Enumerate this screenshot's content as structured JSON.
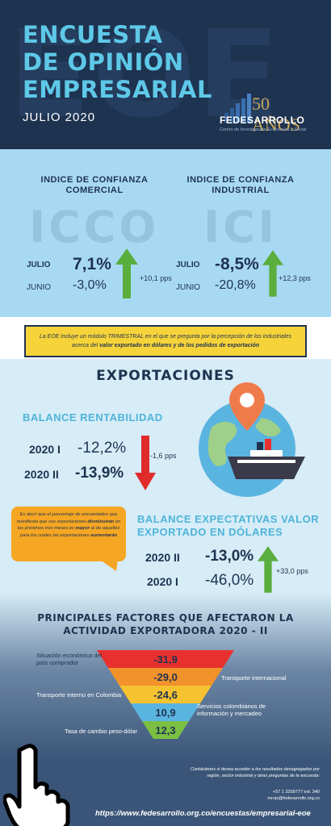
{
  "header": {
    "bg_letters": "EOE",
    "title_line1": "ENCUESTA",
    "title_line2": "DE OPINIÓN",
    "title_line3": "EMPRESARIAL",
    "subtitle": "JULIO 2020",
    "logo": {
      "years": "50 AÑOS",
      "name": "FEDESARROLLO",
      "tagline": "Centro de Investigación Económica y Social"
    }
  },
  "icco": {
    "title_line1": "INDICE DE CONFIANZA",
    "title_line2": "COMERCIAL",
    "acronym": "ICCO",
    "current_label": "JULIO",
    "current_value": "7,1%",
    "previous_label": "JUNIO",
    "previous_value": "-3,0%",
    "change": "+10,1 pps"
  },
  "ici": {
    "title_line1": "INDICE DE CONFIANZA",
    "title_line2": "INDUSTRIAL",
    "acronym": "ICI",
    "current_label": "JULIO",
    "current_value": "-8,5%",
    "previous_label": "JUNIO",
    "previous_value": "-20,8%",
    "change": "+12,3 pps"
  },
  "notice": {
    "text_a": "La EOE incluye un módulo TRIMESTRAL en el que se pregunta por la percepción de los industriales acerca del ",
    "text_b": "valor exportado en dólares y de los pedidos de exportación"
  },
  "exports": {
    "title": "EXPORTACIONES",
    "rentabilidad": {
      "title": "BALANCE RENTABILIDAD",
      "row1_year": "2020 I",
      "row1_value": "-12,2%",
      "row2_year": "2020 II",
      "row2_value": "-13,9%",
      "change": "-1,6 pps"
    },
    "expectativas": {
      "title_line1": "BALANCE EXPECTATIVAS VALOR",
      "title_line2": "EXPORTADO EN DÓLARES",
      "row1_year": "2020 II",
      "row1_value": "-13,0%",
      "row2_year": "2020 I",
      "row2_value": "-46,0%",
      "change": "+33,0 pps"
    },
    "bubble": {
      "p1": "Es decir que el porcentaje de encuestados que manifiesta que sus exportaciones ",
      "p2": "disminuirán",
      "p3": " en los próximos tres meses es ",
      "p4": "mayor",
      "p5": " al de aquellos para los cuales las exportaciones ",
      "p6": "aumentarán"
    }
  },
  "factors": {
    "title_line1": "PRINCIPALES FACTORES QUE AFECTARON LA",
    "title_line2": "ACTIVIDAD EXPORTADORA 2020 - II",
    "items": [
      {
        "label": "Situación económica del país comprador",
        "value": "-31,9",
        "color": "#e8312f"
      },
      {
        "label": "Transporte internacional",
        "value": "-29,0",
        "color": "#f2922b"
      },
      {
        "label": "Transporte interno en Colombia",
        "value": "-24,6",
        "color": "#f5c230"
      },
      {
        "label": "Servicios colombianos de información y mercadeo",
        "value": "10,9",
        "color": "#5ab4e0"
      },
      {
        "label": "Tasa de cambio peso-dólar",
        "value": "12,3",
        "color": "#7cc043"
      }
    ]
  },
  "footer": {
    "contact_line1": "Contáctenos si desea acceder a los resultados desagregados por",
    "contact_line2": "región, sector industrial y otras preguntas de la encuesta:",
    "phone": "+57 1 3259777 ext. 340",
    "email": "mruiz@fedesarrollo.org.co",
    "url": "https://www.fedesarrollo.org.co/encuestas/empresarial-eoe"
  },
  "colors": {
    "navy": "#1e3350",
    "light_blue": "#a8d9f3",
    "cyan": "#5ec8e8",
    "green": "#5aae3e",
    "red": "#e02b2b",
    "yellow": "#f7d33a",
    "orange": "#f5a623"
  }
}
